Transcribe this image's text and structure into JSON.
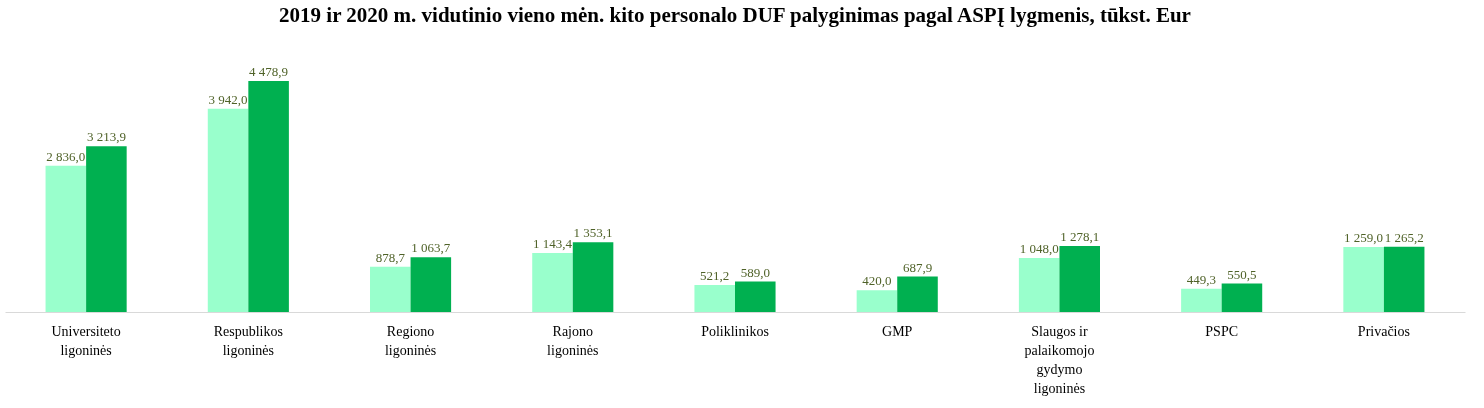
{
  "chart_data": {
    "type": "bar",
    "title": "2019 ir 2020 m. vidutinio vieno mėn. kito personalo DUF palyginimas pagal ASPĮ lygmenis, tūkst. Eur",
    "categories": [
      "Universiteto ligoninės",
      "Respublikos ligoninės",
      "Regiono ligoninės",
      "Rajono ligoninės",
      "Poliklinikos",
      "GMP",
      "Slaugos ir palaikomojo gydymo ligoninės",
      "PSPC",
      "Privačios"
    ],
    "series": [
      {
        "color": "#99ffcc",
        "values": [
          2836.0,
          3942.0,
          878.7,
          1143.4,
          521.2,
          420.0,
          1048.0,
          449.3,
          1259.0
        ],
        "value_labels": [
          "2 836,0",
          "3 942,0",
          "878,7",
          "1 143,4",
          "521,2",
          "420,0",
          "1 048,0",
          "449,3",
          "1 259,0"
        ]
      },
      {
        "color": "#00b050",
        "values": [
          3213.9,
          4478.9,
          1063.7,
          1353.1,
          589.0,
          687.9,
          1278.1,
          550.5,
          1265.2
        ],
        "value_labels": [
          "3 213,9",
          "4 478,9",
          "1 063,7",
          "1 353,1",
          "589,0",
          "687,9",
          "1 278,1",
          "550,5",
          "1 265,2"
        ]
      }
    ],
    "grid": false,
    "legend": false
  }
}
